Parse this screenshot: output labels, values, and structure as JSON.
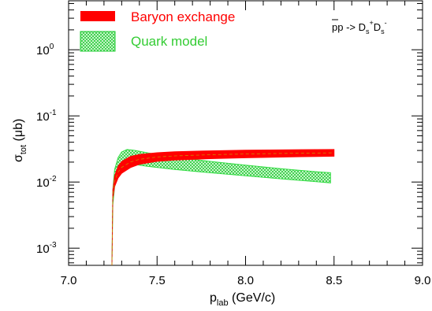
{
  "chart_data": {
    "type": "area",
    "title": "",
    "annotation": {
      "reaction_prefix": "p",
      "reaction_mid": "p -> D",
      "sub1": "s",
      "sup1": "+",
      "d2": "D",
      "sub2": "s",
      "sup2": "-"
    },
    "xlabel": {
      "main": "p",
      "sub": "lab",
      "unit": " (GeV/c)"
    },
    "ylabel": {
      "main": "σ",
      "sub": "tot",
      "unit": " (μb)"
    },
    "x_ticks": [
      "7.0",
      "7.5",
      "8.0",
      "8.5",
      "9.0"
    ],
    "xlim": [
      7.0,
      9.0
    ],
    "y_scale": "log",
    "ylim": [
      0.00055,
      5.5
    ],
    "y_ticks": [
      {
        "value": 0.001,
        "base": "10",
        "exp": "-3"
      },
      {
        "value": 0.01,
        "base": "10",
        "exp": "-2"
      },
      {
        "value": 0.1,
        "base": "10",
        "exp": "-1"
      },
      {
        "value": 1,
        "base": "10",
        "exp": "0"
      }
    ],
    "legend_position": "top-left",
    "series": [
      {
        "name": "Baryon exchange",
        "color": "#ff0000",
        "style": "solid",
        "x": [
          7.245,
          7.25,
          7.26,
          7.28,
          7.3,
          7.35,
          7.4,
          7.5,
          7.6,
          7.8,
          8.0,
          8.2,
          8.4,
          8.5
        ],
        "lower": [
          0.0005,
          0.0055,
          0.0085,
          0.0115,
          0.0135,
          0.0165,
          0.0185,
          0.0205,
          0.0215,
          0.0225,
          0.0232,
          0.0238,
          0.0243,
          0.0245
        ],
        "upper": [
          0.0005,
          0.0075,
          0.0125,
          0.0175,
          0.0205,
          0.0245,
          0.0262,
          0.0278,
          0.0287,
          0.0297,
          0.0303,
          0.0307,
          0.031,
          0.0311
        ]
      },
      {
        "name": "Quark model",
        "color": "#33dd44",
        "style": "hatched",
        "x": [
          7.245,
          7.25,
          7.26,
          7.28,
          7.3,
          7.33,
          7.37,
          7.45,
          7.6,
          7.8,
          8.0,
          8.2,
          8.4,
          8.48
        ],
        "lower": [
          0.0002,
          0.0045,
          0.0085,
          0.0135,
          0.0165,
          0.0185,
          0.0185,
          0.0172,
          0.0155,
          0.0138,
          0.0124,
          0.0112,
          0.0101,
          0.0097
        ],
        "upper": [
          0.0002,
          0.0075,
          0.0155,
          0.0235,
          0.0285,
          0.031,
          0.0302,
          0.0275,
          0.0238,
          0.0205,
          0.018,
          0.0159,
          0.0143,
          0.0138
        ]
      }
    ]
  }
}
